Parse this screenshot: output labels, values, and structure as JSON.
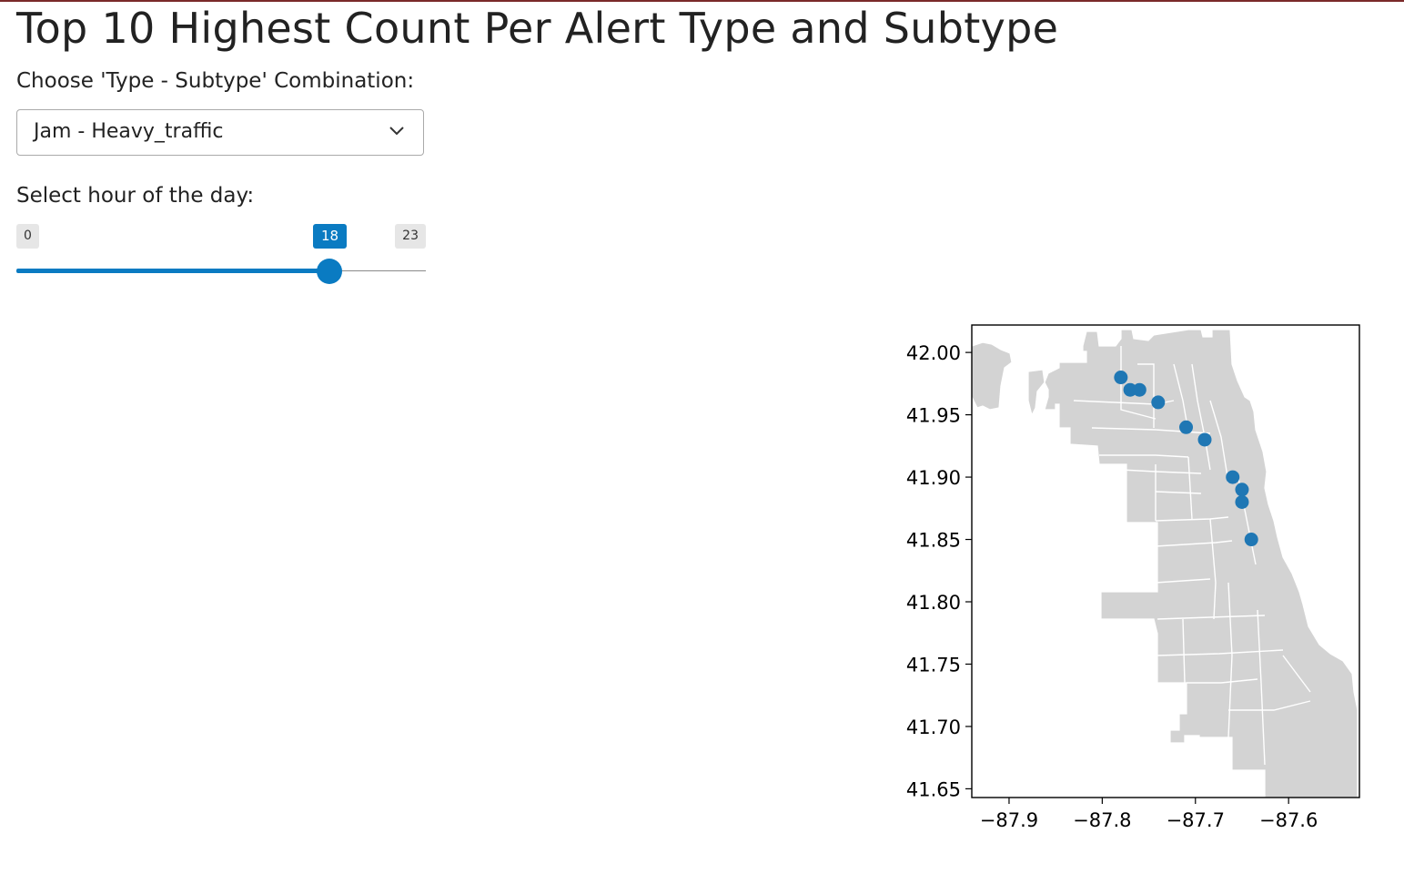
{
  "page": {
    "title": "Top 10 Highest Count Per Alert Type and Subtype"
  },
  "controls": {
    "combo_label": "Choose 'Type - Subtype' Combination:",
    "combo_value": "Jam - Heavy_traffic",
    "hour_label": "Select hour of the day:",
    "hour_min": "0",
    "hour_max": "23",
    "hour_value": "18"
  },
  "colors": {
    "accent": "#0a7bc2",
    "map_fill": "#d3d3d3",
    "map_edge": "#ffffff",
    "point": "#1f77b4"
  },
  "icons": {
    "dropdown": "chevron-down-icon"
  },
  "chart_data": {
    "type": "scatter",
    "title": "",
    "xlabel": "",
    "ylabel": "",
    "xlim": [
      -87.94,
      -87.524
    ],
    "ylim": [
      41.643,
      42.022
    ],
    "xticks": [
      "−87.9",
      "−87.8",
      "−87.7",
      "−87.6"
    ],
    "xtick_values": [
      -87.9,
      -87.8,
      -87.7,
      -87.6
    ],
    "yticks": [
      "42.00",
      "41.95",
      "41.90",
      "41.85",
      "41.80",
      "41.75",
      "41.70",
      "41.65"
    ],
    "ytick_values": [
      42.0,
      41.95,
      41.9,
      41.85,
      41.8,
      41.75,
      41.7,
      41.65
    ],
    "background": "Chicago neighborhood boundaries",
    "series": [
      {
        "points": [
          {
            "x": -87.78,
            "y": 41.98
          },
          {
            "x": -87.77,
            "y": 41.97
          },
          {
            "x": -87.76,
            "y": 41.97
          },
          {
            "x": -87.74,
            "y": 41.96
          },
          {
            "x": -87.71,
            "y": 41.94
          },
          {
            "x": -87.69,
            "y": 41.93
          },
          {
            "x": -87.66,
            "y": 41.9
          },
          {
            "x": -87.65,
            "y": 41.89
          },
          {
            "x": -87.65,
            "y": 41.88
          },
          {
            "x": -87.64,
            "y": 41.85
          }
        ]
      }
    ]
  }
}
